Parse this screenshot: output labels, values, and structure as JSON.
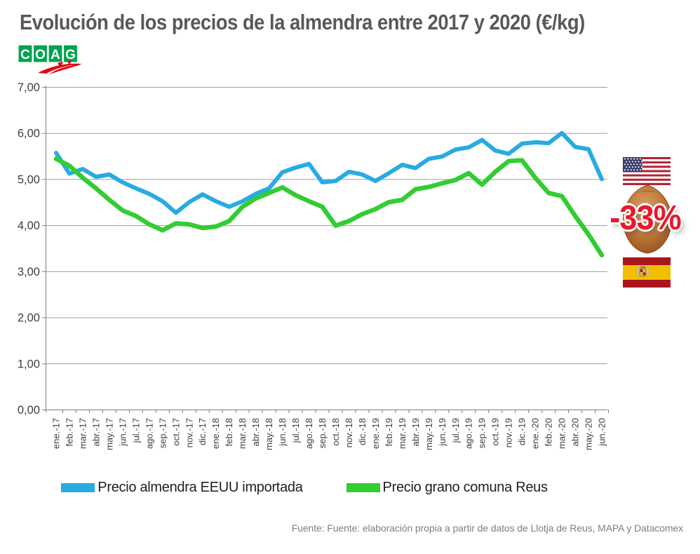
{
  "header": {
    "title": "Evolución de los precios de la almendra entre 2017 y 2020 (€/kg)",
    "logo_letters": [
      "C",
      "O",
      "A",
      "G"
    ]
  },
  "chart_data": {
    "type": "line",
    "title": "Evolución de los precios de la almendra entre 2017 y 2020 (€/kg)",
    "xlabel": "",
    "ylabel": "",
    "ylim": [
      0,
      7
    ],
    "ytick_labels": [
      "0,00",
      "1,00",
      "2,00",
      "3,00",
      "4,00",
      "5,00",
      "6,00",
      "7,00"
    ],
    "grid": true,
    "legend_position": "bottom",
    "xtick_rotation": 90,
    "categories": [
      "ene.-17",
      "feb.-17",
      "mar.-17",
      "abr.-17",
      "may.-17",
      "jun.-17",
      "jul.-17",
      "ago.-17",
      "sep.-17",
      "oct.-17",
      "nov.-17",
      "dic.-17",
      "ene.-18",
      "feb.-18",
      "mar.-18",
      "abr.-18",
      "may.-18",
      "jun.-18",
      "jul.-18",
      "ago.-18",
      "sep.-18",
      "oct.-18",
      "nov.-18",
      "dic.-18",
      "ene.-19",
      "feb.-19",
      "mar.-19",
      "abr.-19",
      "may.-19",
      "jun.-19",
      "jul.-19",
      "ago.-19",
      "sep.-19",
      "oct.-19",
      "nov.-19",
      "dic.-19",
      "ene.-20",
      "feb.-20",
      "mar.-20",
      "abr.-20",
      "may.-20",
      "jun.-20"
    ],
    "series": [
      {
        "name": "Precio almendra EEUU importada",
        "color": "#29ABE2",
        "values": [
          5.57,
          5.12,
          5.22,
          5.05,
          5.1,
          4.93,
          4.8,
          4.68,
          4.52,
          4.27,
          4.5,
          4.67,
          4.52,
          4.4,
          4.52,
          4.68,
          4.8,
          5.15,
          5.25,
          5.33,
          4.93,
          4.96,
          5.16,
          5.1,
          4.96,
          5.13,
          5.31,
          5.24,
          5.44,
          5.49,
          5.64,
          5.69,
          5.85,
          5.62,
          5.55,
          5.77,
          5.8,
          5.78,
          6.0,
          5.7,
          5.65,
          5.0
        ]
      },
      {
        "name": "Precio grano comuna Reus",
        "color": "#33CC33",
        "values": [
          5.44,
          5.29,
          5.03,
          4.8,
          4.55,
          4.32,
          4.2,
          4.02,
          3.89,
          4.04,
          4.02,
          3.94,
          3.97,
          4.09,
          4.4,
          4.58,
          4.7,
          4.82,
          4.65,
          4.52,
          4.4,
          3.99,
          4.09,
          4.24,
          4.35,
          4.5,
          4.55,
          4.78,
          4.83,
          4.91,
          4.98,
          5.13,
          4.88,
          5.16,
          5.39,
          5.41,
          5.03,
          4.7,
          4.63,
          4.2,
          3.8,
          3.35
        ]
      }
    ]
  },
  "annotations": {
    "discount_badge": "-33%",
    "us_flag": "us-flag",
    "spain_flag": "spain-flag"
  },
  "colors": {
    "series_eeuu": "#29ABE2",
    "series_reus": "#33CC33",
    "grid": "#9d9d9d",
    "axis": "#808080",
    "title": "#58585a",
    "badge_red": "#e8192c",
    "logo_green": "#00A44F",
    "logo_red": "#E30613"
  },
  "footer": {
    "source": "Fuente: Fuente: elaboración propia a partir de datos de Llotja de Reus, MAPA y Datacomex"
  }
}
